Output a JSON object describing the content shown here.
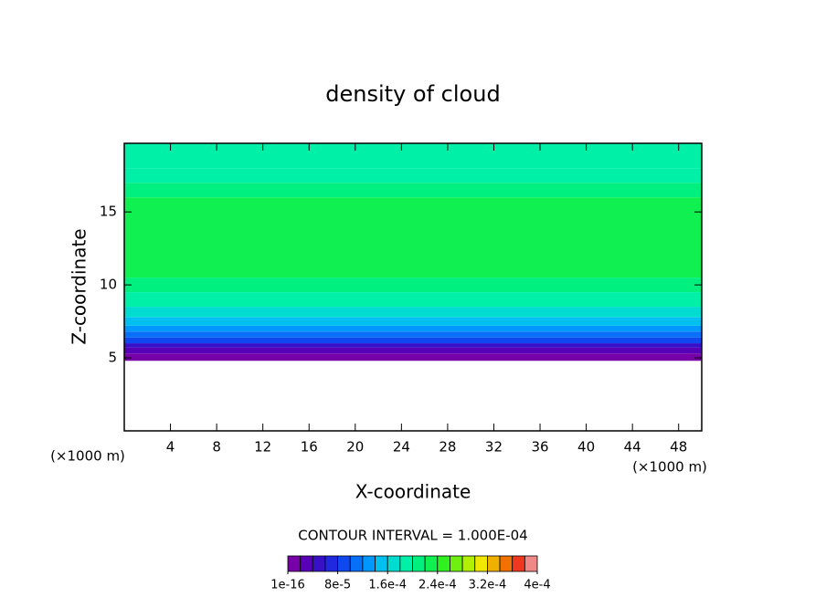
{
  "chart_data": {
    "type": "contour",
    "title": "density of cloud",
    "x_label": "X-coordinate",
    "y_label": "Z-coordinate",
    "x_unit_left": "(×1000 m)",
    "x_unit_right": "(×1000 m)",
    "annotation": "CONTOUR INTERVAL = 1.000E-04",
    "xlim": [
      0,
      50
    ],
    "xticks": [
      4,
      8,
      12,
      16,
      20,
      24,
      28,
      32,
      36,
      40,
      44,
      48
    ],
    "ylim": [
      0,
      19.7
    ],
    "yticks": [
      5,
      10,
      15
    ],
    "zbins": [
      4.8,
      5.3,
      5.7,
      6.0,
      6.4,
      6.8,
      7.2,
      7.8,
      8.5,
      9.5,
      10.5,
      16,
      17,
      18,
      19.7
    ],
    "values": [
      1e-05,
      3e-05,
      6e-05,
      9e-05,
      0.00012,
      0.00014,
      0.00016,
      0.00018,
      0.0002,
      0.00022,
      0.00024,
      0.00022,
      0.0002,
      0.00019
    ],
    "colorbar": {
      "colors": [
        "#7800a8",
        "#5800b8",
        "#3810c8",
        "#2028e0",
        "#1048f0",
        "#0870f8",
        "#0098ff",
        "#00c0f0",
        "#00dcd0",
        "#00f0a8",
        "#00f080",
        "#10f050",
        "#30f020",
        "#70f010",
        "#b0f000",
        "#f0e800",
        "#f0b000",
        "#f07000",
        "#f03820",
        "#f08888"
      ],
      "ticks": [
        {
          "value": 1e-16,
          "label": "1e-16"
        },
        {
          "value": 8e-05,
          "label": "8e-5"
        },
        {
          "value": 0.00016,
          "label": "1.6e-4"
        },
        {
          "value": 0.00024,
          "label": "2.4e-4"
        },
        {
          "value": 0.00032,
          "label": "3.2e-4"
        },
        {
          "value": 0.0004,
          "label": "4e-4"
        }
      ]
    }
  }
}
